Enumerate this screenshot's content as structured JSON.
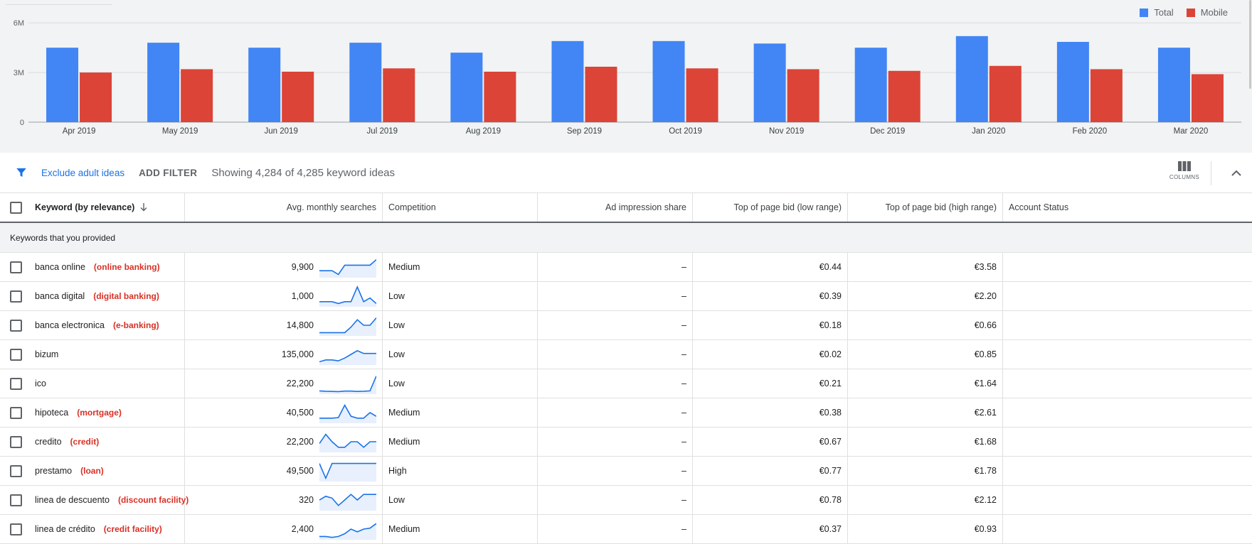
{
  "chart_data": {
    "type": "bar",
    "categories": [
      "Apr 2019",
      "May 2019",
      "Jun 2019",
      "Jul 2019",
      "Aug 2019",
      "Sep 2019",
      "Oct 2019",
      "Nov 2019",
      "Dec 2019",
      "Jan 2020",
      "Feb 2020",
      "Mar 2020"
    ],
    "series": [
      {
        "name": "Total",
        "color": "#4285f4",
        "values": [
          4.5,
          4.8,
          4.5,
          4.8,
          4.2,
          4.9,
          4.9,
          4.75,
          4.5,
          5.2,
          4.85,
          4.5
        ]
      },
      {
        "name": "Mobile",
        "color": "#db4437",
        "values": [
          3.0,
          3.2,
          3.05,
          3.25,
          3.05,
          3.35,
          3.25,
          3.2,
          3.1,
          3.4,
          3.2,
          2.9
        ]
      }
    ],
    "y_tick_labels": [
      "0",
      "3M",
      "6M"
    ],
    "y_ticks": [
      0,
      3,
      6
    ],
    "ylim": [
      0,
      6.5
    ],
    "grid": true,
    "legend_position": "top-right"
  },
  "filter_bar": {
    "adult_filter_label": "Exclude adult ideas",
    "add_filter_label": "ADD FILTER",
    "showing_text": "Showing 4,284 of 4,285 keyword ideas",
    "columns_label": "COLUMNS"
  },
  "table": {
    "headers": {
      "keyword": "Keyword (by relevance)",
      "searches": "Avg. monthly searches",
      "competition": "Competition",
      "share": "Ad impression share",
      "low_bid": "Top of page bid (low range)",
      "high_bid": "Top of page bid (high range)",
      "status": "Account Status"
    },
    "group_label": "Keywords that you provided",
    "rows": [
      {
        "keyword": "banca online",
        "translation": "(online banking)",
        "searches": "9,900",
        "trend": [
          3,
          3,
          3,
          1,
          6,
          6,
          6,
          6,
          6,
          9
        ],
        "competition": "Medium",
        "share": "–",
        "low_bid": "€0.44",
        "high_bid": "€3.58"
      },
      {
        "keyword": "banca digital",
        "translation": "(digital banking)",
        "searches": "1,000",
        "trend": [
          2,
          2,
          2,
          1,
          2,
          2,
          10,
          2,
          4,
          1
        ],
        "competition": "Low",
        "share": "–",
        "low_bid": "€0.39",
        "high_bid": "€2.20"
      },
      {
        "keyword": "banca electronica",
        "translation": "(e-banking)",
        "searches": "14,800",
        "trend": [
          1,
          1,
          1,
          1,
          1,
          4,
          8,
          5,
          5,
          9
        ],
        "competition": "Low",
        "share": "–",
        "low_bid": "€0.18",
        "high_bid": "€0.66"
      },
      {
        "keyword": "bizum",
        "translation": "",
        "searches": "135,000",
        "trend": [
          1,
          2,
          2,
          1.5,
          3,
          5,
          7,
          5.5,
          5.5,
          5.5
        ],
        "competition": "Low",
        "share": "–",
        "low_bid": "€0.02",
        "high_bid": "€0.85"
      },
      {
        "keyword": "ico",
        "translation": "",
        "searches": "22,200",
        "trend": [
          1,
          0.8,
          0.7,
          0.6,
          0.9,
          0.9,
          0.7,
          0.8,
          1,
          9
        ],
        "competition": "Low",
        "share": "–",
        "low_bid": "€0.21",
        "high_bid": "€1.64"
      },
      {
        "keyword": "hipoteca",
        "translation": "(mortgage)",
        "searches": "40,500",
        "trend": [
          2,
          2,
          2,
          2.3,
          9,
          3,
          2,
          2,
          5,
          3
        ],
        "competition": "Medium",
        "share": "–",
        "low_bid": "€0.38",
        "high_bid": "€2.61"
      },
      {
        "keyword": "credito",
        "translation": "(credit)",
        "searches": "22,200",
        "trend": [
          4,
          9,
          5,
          2,
          2,
          5,
          5,
          2,
          5,
          5
        ],
        "competition": "Medium",
        "share": "–",
        "low_bid": "€0.67",
        "high_bid": "€1.68"
      },
      {
        "keyword": "prestamo",
        "translation": "(loan)",
        "searches": "49,500",
        "trend": [
          9,
          1,
          9,
          9,
          9,
          9,
          9,
          9,
          9,
          9
        ],
        "competition": "High",
        "share": "–",
        "low_bid": "€0.77",
        "high_bid": "€1.78"
      },
      {
        "keyword": "linea de descuento",
        "translation": "(discount facility)",
        "searches": "320",
        "trend": [
          5,
          7,
          6,
          2,
          5,
          8,
          5,
          8,
          8,
          8
        ],
        "competition": "Low",
        "share": "–",
        "low_bid": "€0.78",
        "high_bid": "€2.12"
      },
      {
        "keyword": "linea de crédito",
        "translation": "(credit facility)",
        "searches": "2,400",
        "trend": [
          1,
          1,
          0.5,
          1,
          2.5,
          5,
          3.5,
          5,
          5.5,
          8
        ],
        "competition": "Medium",
        "share": "–",
        "low_bid": "€0.37",
        "high_bid": "€0.93"
      }
    ]
  }
}
